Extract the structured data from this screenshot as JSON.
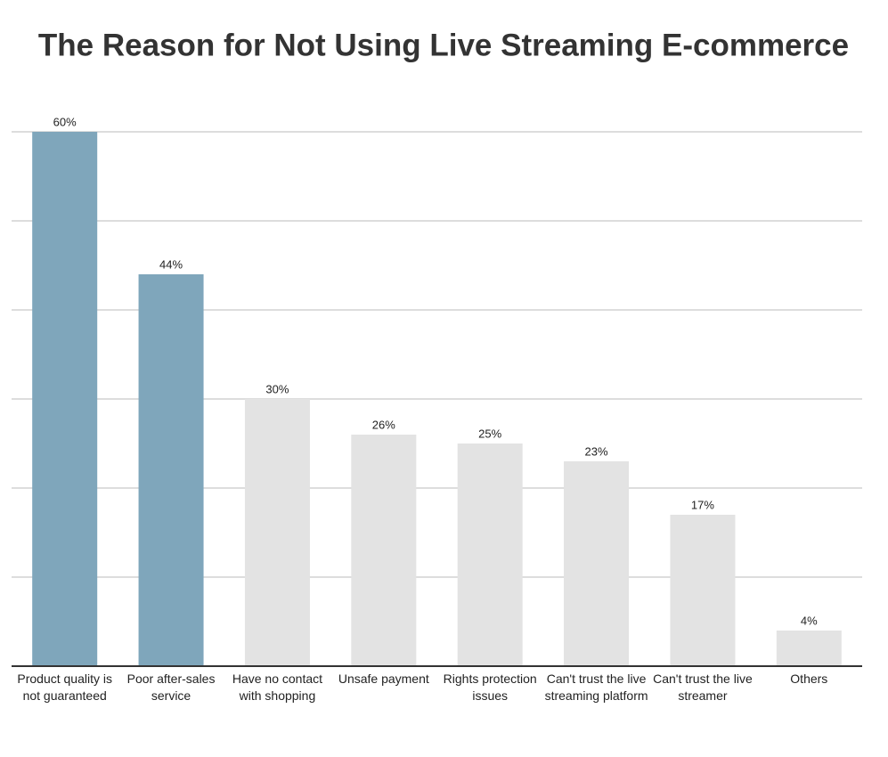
{
  "chart_data": {
    "type": "bar",
    "title": "The Reason for Not Using Live Streaming E-commerce",
    "categories": [
      "Product quality is not guaranteed",
      "Poor after-sales service",
      "Have no contact with shopping",
      "Unsafe payment",
      "Rights protection issues",
      "Can't trust the live streaming platform",
      "Can't trust the live streamer",
      "Others"
    ],
    "values": [
      60,
      44,
      30,
      26,
      25,
      23,
      17,
      4
    ],
    "value_labels": [
      "60%",
      "44%",
      "30%",
      "26%",
      "25%",
      "23%",
      "17%",
      "4%"
    ],
    "colors": [
      "#7fa6bb",
      "#7fa6bb",
      "#e3e3e3",
      "#e3e3e3",
      "#e3e3e3",
      "#e3e3e3",
      "#e3e3e3",
      "#e3e3e3"
    ],
    "ylim": [
      0,
      60
    ],
    "yticks": [
      0,
      10,
      20,
      30,
      40,
      50,
      60
    ],
    "grid": true
  }
}
